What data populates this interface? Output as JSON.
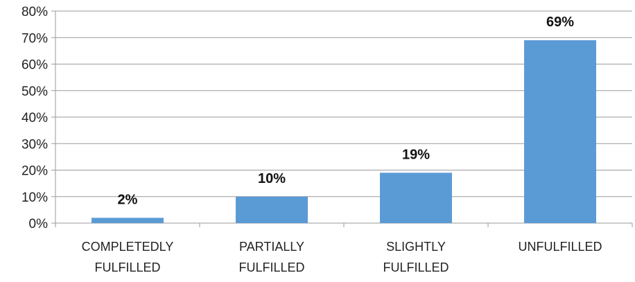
{
  "chart_data": {
    "type": "bar",
    "categories": [
      [
        "COMPLETEDLY",
        "FULFILLED"
      ],
      [
        "PARTIALLY",
        "FULFILLED"
      ],
      [
        "SLIGHTLY",
        "FULFILLED"
      ],
      [
        "UNFULFILLED"
      ]
    ],
    "values": [
      2,
      10,
      19,
      69
    ],
    "data_labels": [
      "2%",
      "10%",
      "19%",
      "69%"
    ],
    "ylim": [
      0,
      80
    ],
    "yticks": [
      0,
      10,
      20,
      30,
      40,
      50,
      60,
      70,
      80
    ],
    "ytick_labels": [
      "0%",
      "10%",
      "20%",
      "30%",
      "40%",
      "50%",
      "60%",
      "70%",
      "80%"
    ],
    "bar_color": "#5b9bd5",
    "grid": true,
    "legend": "none",
    "title": "",
    "xlabel": "",
    "ylabel": ""
  }
}
